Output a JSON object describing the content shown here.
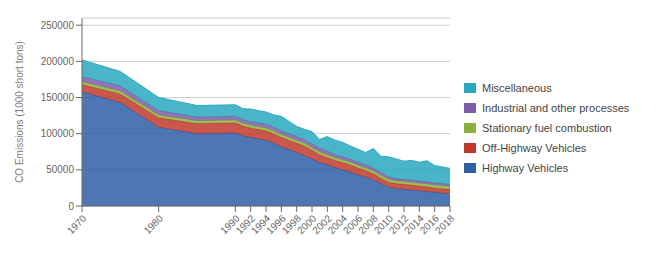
{
  "chart_data": {
    "type": "area",
    "stacked": true,
    "ylabel": "CO Emissions (1000 short tons)",
    "x": [
      1970,
      1975,
      1980,
      1985,
      1990,
      1991,
      1992,
      1993,
      1994,
      1995,
      1996,
      1997,
      1998,
      1999,
      2000,
      2001,
      2002,
      2003,
      2004,
      2005,
      2006,
      2007,
      2008,
      2009,
      2010,
      2011,
      2012,
      2013,
      2014,
      2015,
      2016,
      2017,
      2018
    ],
    "series": [
      {
        "name": "Highway Vehicles",
        "color": "#2E5EA8",
        "values": [
          158000,
          143000,
          109000,
          100000,
          101000,
          97000,
          95000,
          93000,
          91000,
          87000,
          82000,
          78000,
          74000,
          70000,
          65000,
          60000,
          57000,
          53000,
          50000,
          47000,
          43000,
          40000,
          36000,
          31000,
          26000,
          24000,
          23000,
          22000,
          21000,
          20000,
          19000,
          18000,
          17000
        ]
      },
      {
        "name": "Off-Highway Vehicles",
        "color": "#C0392B",
        "values": [
          10000,
          12000,
          13000,
          14000,
          14000,
          13500,
          13000,
          13000,
          13000,
          13000,
          13000,
          13000,
          13000,
          13000,
          12000,
          11000,
          10000,
          10000,
          10000,
          10000,
          9500,
          9000,
          8500,
          7500,
          7000,
          7000,
          7000,
          7000,
          6500,
          6500,
          6000,
          6000,
          6000
        ]
      },
      {
        "name": "Stationary fuel combustion",
        "color": "#8DB03A",
        "values": [
          4000,
          4000,
          4000,
          4000,
          4000,
          4000,
          4000,
          4000,
          4000,
          4000,
          4000,
          4000,
          4000,
          4000,
          4000,
          4000,
          4000,
          4000,
          4000,
          4000,
          4000,
          4000,
          4000,
          4000,
          4000,
          4000,
          4000,
          4000,
          4000,
          4000,
          4000,
          4000,
          4000
        ]
      },
      {
        "name": "Industrial and other processes",
        "color": "#7B5EA7",
        "values": [
          7000,
          7000,
          6000,
          5000,
          5000,
          5000,
          5000,
          5000,
          5000,
          5000,
          5000,
          5000,
          5000,
          5000,
          5000,
          5000,
          5000,
          4000,
          4000,
          4000,
          4000,
          4000,
          4000,
          4000,
          3000,
          3000,
          3000,
          3000,
          3000,
          3000,
          3000,
          3000,
          3000
        ]
      },
      {
        "name": "Miscellaneous",
        "color": "#29A8C0",
        "values": [
          23000,
          20000,
          18000,
          16000,
          16000,
          15000,
          17000,
          17000,
          17000,
          17000,
          20000,
          17000,
          14000,
          14000,
          17000,
          12000,
          20000,
          20000,
          20000,
          18000,
          18000,
          17000,
          27000,
          22000,
          28000,
          27000,
          25000,
          27000,
          26000,
          29000,
          24000,
          23000,
          22000
        ]
      }
    ],
    "xlim": [
      1970,
      2018
    ],
    "xticks": [
      1970,
      1980,
      1990,
      1992,
      1994,
      1996,
      1998,
      2000,
      2002,
      2004,
      2006,
      2008,
      2010,
      2012,
      2014,
      2016,
      2018
    ],
    "ylim": [
      0,
      260000
    ],
    "yticks": [
      0,
      50000,
      100000,
      150000,
      200000,
      250000
    ],
    "grid": true,
    "legend": "right"
  }
}
